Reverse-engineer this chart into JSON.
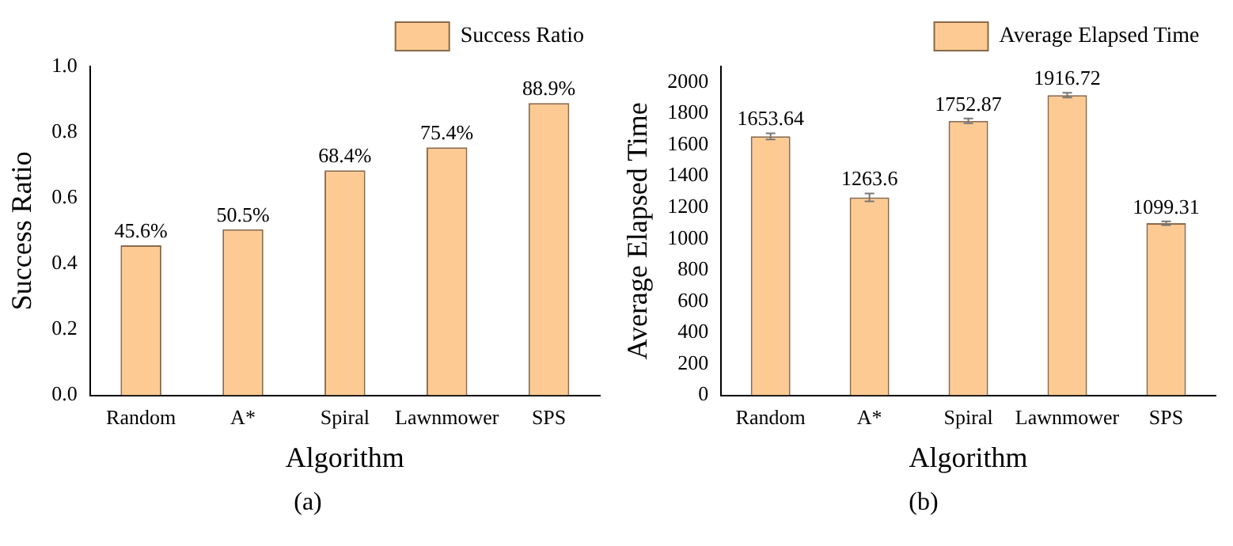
{
  "chart_data": [
    {
      "type": "bar",
      "categories": [
        "Random",
        "A*",
        "Spiral",
        "Lawnmower",
        "SPS"
      ],
      "xlabel": "Algorithm",
      "ylabel": "Success Ratio",
      "series": [
        {
          "name": "Success Ratio",
          "color": "#fdca93",
          "values": [
            0.456,
            0.505,
            0.684,
            0.754,
            0.889
          ],
          "value_labels": [
            "45.6%",
            "50.5%",
            "68.4%",
            "75.4%",
            "88.9%"
          ]
        }
      ],
      "ylim": [
        0,
        1.0
      ],
      "yticks": [
        {
          "value": 0,
          "label": "0.0"
        },
        {
          "value": 0.2,
          "label": "0.2"
        },
        {
          "value": 0.4,
          "label": "0.4"
        },
        {
          "value": 0.6,
          "label": "0.6"
        },
        {
          "value": 0.8,
          "label": "0.8"
        },
        {
          "value": 1.0,
          "label": "1.0"
        }
      ],
      "legend": "top right",
      "annotations": [
        "(a)"
      ]
    },
    {
      "type": "bar",
      "categories": [
        "Random",
        "A*",
        "Spiral",
        "Lawnmower",
        "SPS"
      ],
      "xlabel": "Algorithm",
      "ylabel": "Average Elapsed Time",
      "series": [
        {
          "name": "Average Elapsed Time",
          "color": "#fdca93",
          "values": [
            1653.64,
            1263.6,
            1752.87,
            1916.72,
            1099.31
          ],
          "errors": [
            20,
            25,
            15,
            15,
            12
          ]
        }
      ],
      "ylim": [
        0,
        2100
      ],
      "yticks": [
        0,
        200,
        400,
        600,
        800,
        1000,
        1200,
        1400,
        1600,
        1800,
        2000
      ],
      "data_labels": true,
      "legend": "top right",
      "annotations": [
        "(b)"
      ]
    }
  ]
}
